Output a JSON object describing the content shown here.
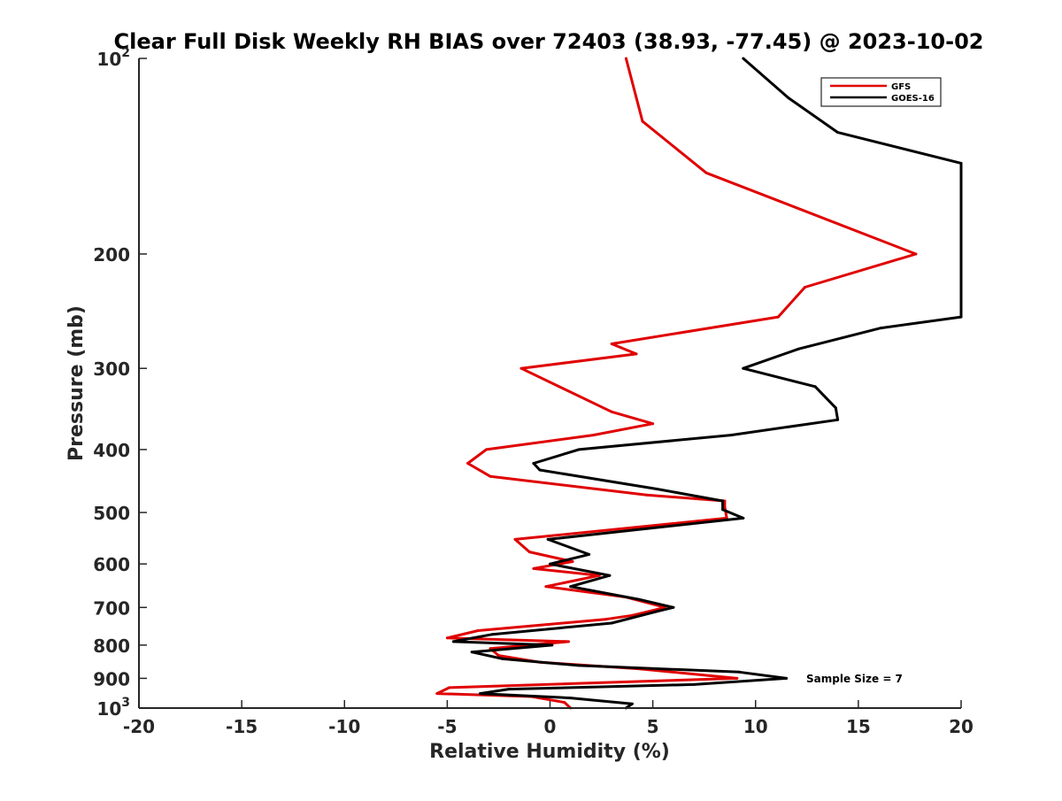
{
  "chart_data": {
    "type": "line",
    "title": "Clear Full Disk Weekly RH BIAS over 72403 (38.93, -77.45) @ 2023-10-02",
    "xlabel": "Relative Humidity (%)",
    "ylabel": "Pressure (mb)",
    "xlim": [
      -20,
      20
    ],
    "ylim": [
      100,
      1000
    ],
    "y_scale": "log",
    "y_reversed": true,
    "x_ticks": [
      -20,
      -15,
      -10,
      -5,
      0,
      5,
      10,
      15,
      20
    ],
    "x_tick_labels": [
      "-20",
      "-15",
      "-10",
      "-5",
      "0",
      "5",
      "10",
      "15",
      "20"
    ],
    "y_ticks": [
      100,
      200,
      300,
      400,
      500,
      600,
      700,
      800,
      900,
      1000
    ],
    "y_tick_labels": {
      "p100": {
        "base": "10",
        "exp": "2"
      },
      "p200": "200",
      "p300": "300",
      "p400": "400",
      "p500": "500",
      "p600": "600",
      "p700": "700",
      "p800": "800",
      "p900": "900",
      "p1000": {
        "base": "10",
        "exp": "3"
      }
    },
    "grid": false,
    "legend": {
      "position": "top-right",
      "entries": [
        "GFS",
        "GOES-16"
      ]
    },
    "annotation": "Sample Size = 7",
    "series": [
      {
        "name": "GFS",
        "color": "#e00000",
        "points": [
          [
            3.7,
            100
          ],
          [
            4.5,
            125
          ],
          [
            7.6,
            150
          ],
          [
            17.8,
            200
          ],
          [
            12.4,
            225
          ],
          [
            11.1,
            250
          ],
          [
            3.0,
            275
          ],
          [
            4.2,
            285
          ],
          [
            -1.4,
            300
          ],
          [
            3.0,
            350
          ],
          [
            5.0,
            365
          ],
          [
            2.1,
            380
          ],
          [
            -3.1,
            400
          ],
          [
            -4.0,
            420
          ],
          [
            -2.9,
            440
          ],
          [
            4.7,
            470
          ],
          [
            8.5,
            480
          ],
          [
            8.5,
            490
          ],
          [
            8.6,
            510
          ],
          [
            -1.7,
            550
          ],
          [
            -1.0,
            575
          ],
          [
            1.1,
            595
          ],
          [
            -0.8,
            610
          ],
          [
            2.4,
            625
          ],
          [
            -0.2,
            650
          ],
          [
            3.7,
            675
          ],
          [
            5.6,
            700
          ],
          [
            4.0,
            720
          ],
          [
            2.7,
            730
          ],
          [
            -3.5,
            760
          ],
          [
            -5.0,
            780
          ],
          [
            0.9,
            790
          ],
          [
            -2.9,
            810
          ],
          [
            -2.5,
            830
          ],
          [
            -0.5,
            850
          ],
          [
            4.3,
            870
          ],
          [
            9.1,
            900
          ],
          [
            -4.9,
            930
          ],
          [
            -5.5,
            950
          ],
          [
            -0.9,
            960
          ],
          [
            0.7,
            980
          ],
          [
            1.0,
            1000
          ]
        ]
      },
      {
        "name": "GOES-16",
        "color": "#000000",
        "points": [
          [
            9.4,
            100
          ],
          [
            11.6,
            115
          ],
          [
            14.0,
            130
          ],
          [
            20.0,
            145
          ],
          [
            20.0,
            250
          ],
          [
            16.1,
            260
          ],
          [
            12.1,
            280
          ],
          [
            9.4,
            300
          ],
          [
            12.9,
            320
          ],
          [
            13.9,
            345
          ],
          [
            14.0,
            360
          ],
          [
            8.8,
            380
          ],
          [
            1.4,
            400
          ],
          [
            -0.8,
            420
          ],
          [
            -0.5,
            430
          ],
          [
            5.2,
            460
          ],
          [
            8.4,
            480
          ],
          [
            8.4,
            495
          ],
          [
            9.4,
            510
          ],
          [
            -0.1,
            550
          ],
          [
            1.9,
            580
          ],
          [
            0.0,
            600
          ],
          [
            2.9,
            625
          ],
          [
            1.0,
            650
          ],
          [
            4.3,
            680
          ],
          [
            6.0,
            700
          ],
          [
            5.2,
            710
          ],
          [
            3.0,
            740
          ],
          [
            -2.8,
            770
          ],
          [
            -4.7,
            790
          ],
          [
            0.1,
            800
          ],
          [
            -3.8,
            820
          ],
          [
            -2.3,
            840
          ],
          [
            1.4,
            860
          ],
          [
            9.2,
            880
          ],
          [
            11.5,
            900
          ],
          [
            7.0,
            920
          ],
          [
            -2.0,
            935
          ],
          [
            -3.4,
            950
          ],
          [
            1.0,
            965
          ],
          [
            4.0,
            985
          ],
          [
            3.7,
            1000
          ]
        ]
      }
    ]
  }
}
